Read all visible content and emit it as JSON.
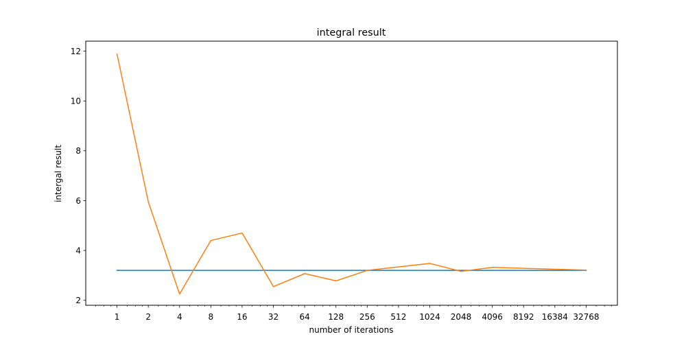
{
  "chart_data": {
    "type": "line",
    "title": "integral result",
    "xlabel": "number of iterations",
    "ylabel": "intergal result",
    "x_scale": "log2",
    "x": [
      1,
      2,
      4,
      8,
      16,
      32,
      64,
      128,
      256,
      512,
      1024,
      2048,
      4096,
      8192,
      16384,
      32768
    ],
    "x_tick_labels": [
      "1",
      "2",
      "4",
      "8",
      "16",
      "32",
      "64",
      "128",
      "256",
      "512",
      "1024",
      "2048",
      "4096",
      "8192",
      "16384",
      "32768"
    ],
    "xlim": [
      0.5,
      65536
    ],
    "ylim": [
      1.8,
      12.4
    ],
    "y_ticks": [
      2,
      4,
      6,
      8,
      10,
      12
    ],
    "y_tick_labels": [
      "2",
      "4",
      "6",
      "8",
      "10",
      "12"
    ],
    "grid": false,
    "legend": "none",
    "series": [
      {
        "color": "#1f77b4",
        "points": [
          [
            1,
            3.2
          ],
          [
            32768,
            3.2
          ]
        ]
      },
      {
        "color": "#ff7f0e",
        "points": [
          [
            1,
            11.88
          ],
          [
            2,
            5.95
          ],
          [
            4,
            2.25
          ],
          [
            8,
            4.4
          ],
          [
            16,
            4.7
          ],
          [
            32,
            2.55
          ],
          [
            64,
            3.07
          ],
          [
            128,
            2.78
          ],
          [
            256,
            3.2
          ],
          [
            1024,
            3.48
          ],
          [
            2048,
            3.16
          ],
          [
            4096,
            3.32
          ],
          [
            32768,
            3.21
          ]
        ]
      }
    ]
  }
}
